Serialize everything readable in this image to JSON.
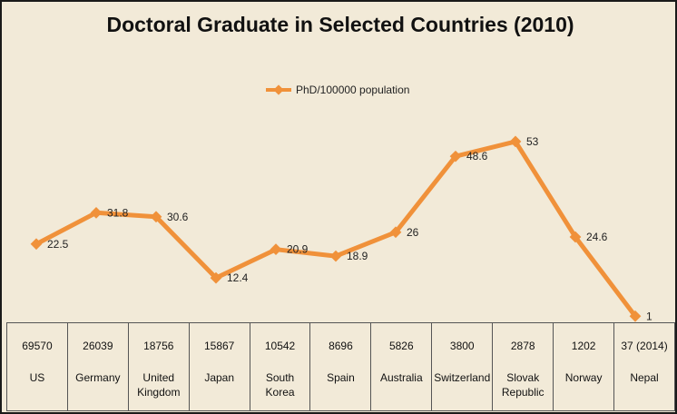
{
  "chart_data": {
    "type": "line",
    "title": "Doctoral Graduate in Selected Countries (2010)",
    "legend_position": "top-center",
    "grid": false,
    "series": [
      {
        "name": "PhD/100000 population",
        "color": "#f0913a",
        "values": [
          22.5,
          31.8,
          30.6,
          12.4,
          20.9,
          18.9,
          26,
          48.6,
          53,
          24.6,
          1
        ],
        "labels": [
          "22.5",
          "31.8",
          "30.6",
          "12.4",
          "20.9",
          "18.9",
          "26",
          "48.6",
          "53",
          "24.6",
          "1"
        ]
      }
    ],
    "table": {
      "counts": [
        "69570",
        "26039",
        "18756",
        "15867",
        "10542",
        "8696",
        "5826",
        "3800",
        "2878",
        "1202",
        "37 (2014)"
      ],
      "countries": [
        "US",
        "Germany",
        "United Kingdom",
        "Japan",
        "South Korea",
        "Spain",
        "Australia",
        "Switzerland",
        "Slovak Republic",
        "Norway",
        "Nepal"
      ]
    }
  }
}
